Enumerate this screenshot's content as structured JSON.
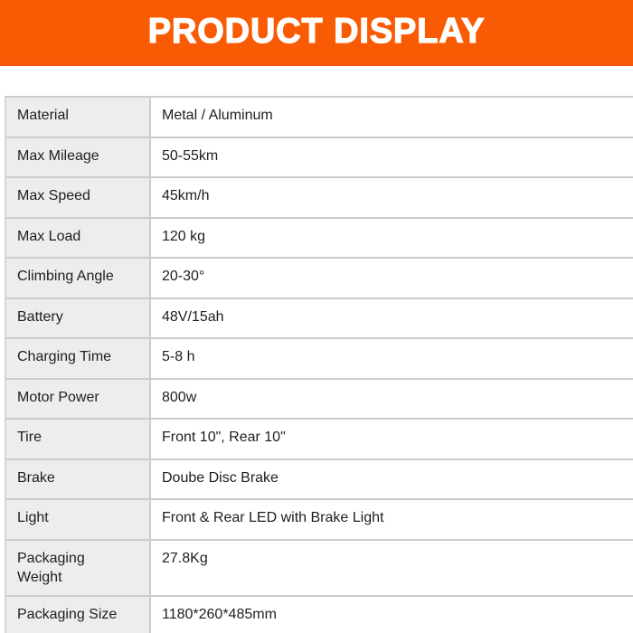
{
  "banner": {
    "title": "PRODUCT DISPLAY",
    "bg_color": "#F95B04",
    "text_color": "#FFFFFF"
  },
  "table": {
    "label_bg": "#EDEDF0",
    "value_bg": "#FFFFFF",
    "border_color": "#CCCCCC",
    "text_color": "#1E1E1E",
    "rows": [
      {
        "label": "Material",
        "value": "Metal / Aluminum"
      },
      {
        "label": "Max Mileage",
        "value": "50-55km"
      },
      {
        "label": "Max Speed",
        "value": "45km/h"
      },
      {
        "label": "Max Load",
        "value": "120 kg"
      },
      {
        "label": "Climbing Angle",
        "value": "20-30°"
      },
      {
        "label": "Battery",
        "value": "48V/15ah"
      },
      {
        "label": "Charging Time",
        "value": "5-8 h"
      },
      {
        "label": "Motor Power",
        "value": "800w"
      },
      {
        "label": "Tire",
        "value": "Front 10\", Rear 10\""
      },
      {
        "label": "Brake",
        "value": "Doube Disc Brake"
      },
      {
        "label": "Light",
        "value": "Front & Rear LED with Brake Light"
      },
      {
        "label": "Packaging Weight",
        "value": "27.8Kg"
      },
      {
        "label": "Packaging Size",
        "value": "1180*260*485mm"
      }
    ]
  }
}
